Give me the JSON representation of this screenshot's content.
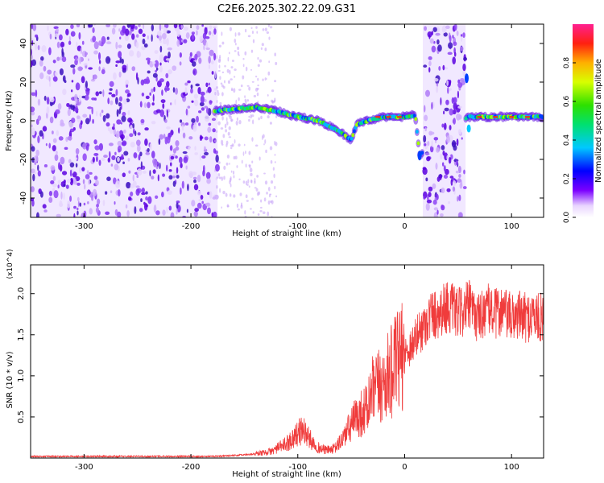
{
  "title": "C2E6.2025.302.22.09.G31",
  "chart_data": [
    {
      "type": "heatmap",
      "name": "spectrogram",
      "xlabel": "Height of straight line (km)",
      "ylabel": "Frequency (Hz)",
      "xlim": [
        -350,
        130
      ],
      "ylim": [
        -50,
        50
      ],
      "xticks": [
        "-300",
        "-200",
        "-100",
        "0",
        "100"
      ],
      "xtick_values": [
        -300,
        -200,
        -100,
        0,
        100
      ],
      "yticks": [
        "-40",
        "-20",
        "0",
        "20",
        "40"
      ],
      "ytick_values": [
        -40,
        -20,
        0,
        20,
        40
      ],
      "noise_regions_km": [
        [
          -350,
          -175
        ],
        [
          17,
          57
        ]
      ],
      "signal_track": {
        "x": [
          -178,
          -160,
          -140,
          -120,
          -100,
          -80,
          -60,
          -50,
          -45,
          -35,
          -20,
          0,
          10,
          14,
          60,
          80,
          100,
          130
        ],
        "y": [
          5,
          6,
          7,
          5,
          2,
          0,
          -6,
          -10,
          -2,
          0,
          2,
          2,
          3,
          -18,
          2,
          2,
          2,
          2
        ]
      },
      "colorbar": {
        "label": "Normalized spectral amplitude",
        "range": [
          0.0,
          1.0
        ],
        "ticks": [
          "0.0",
          "0.2",
          "0.4",
          "0.6",
          "0.8"
        ],
        "tick_values": [
          0.0,
          0.2,
          0.4,
          0.6,
          0.8
        ]
      }
    },
    {
      "type": "line",
      "name": "snr",
      "xlabel": "Height of straight line (km)",
      "ylabel": "SNR (10 * v/v)",
      "y_multiplier": "(x10^4)",
      "xlim": [
        -350,
        130
      ],
      "ylim": [
        0,
        2.35
      ],
      "xticks": [
        "-300",
        "-200",
        "-100",
        "0",
        "100"
      ],
      "xtick_values": [
        -300,
        -200,
        -100,
        0,
        100
      ],
      "yticks": [
        "0.5",
        "1.0",
        "1.5",
        "2.0"
      ],
      "ytick_values": [
        0.5,
        1.0,
        1.5,
        2.0
      ],
      "color": "#f03c3c",
      "series": [
        {
          "name": "SNR",
          "x": [
            -350,
            -300,
            -250,
            -200,
            -175,
            -160,
            -140,
            -125,
            -110,
            -100,
            -95,
            -90,
            -85,
            -80,
            -75,
            -70,
            -65,
            -60,
            -55,
            -50,
            -45,
            -40,
            -35,
            -30,
            -25,
            -20,
            -15,
            -10,
            -5,
            0,
            5,
            10,
            15,
            20,
            25,
            30,
            35,
            40,
            45,
            50,
            55,
            60,
            65,
            70,
            75,
            80,
            85,
            90,
            95,
            100,
            105,
            110,
            115,
            120,
            125,
            130
          ],
          "y": [
            0.02,
            0.02,
            0.02,
            0.02,
            0.02,
            0.03,
            0.05,
            0.08,
            0.18,
            0.3,
            0.35,
            0.25,
            0.18,
            0.12,
            0.1,
            0.1,
            0.12,
            0.2,
            0.3,
            0.4,
            0.5,
            0.55,
            0.6,
            0.8,
            0.85,
            0.9,
            1.0,
            1.1,
            1.2,
            1.25,
            1.35,
            1.45,
            1.55,
            1.65,
            1.75,
            1.75,
            1.8,
            1.85,
            1.8,
            1.75,
            1.8,
            1.85,
            1.75,
            1.7,
            1.8,
            1.8,
            1.75,
            1.8,
            1.75,
            1.7,
            1.75,
            1.72,
            1.7,
            1.75,
            1.7,
            1.72
          ]
        }
      ]
    }
  ]
}
